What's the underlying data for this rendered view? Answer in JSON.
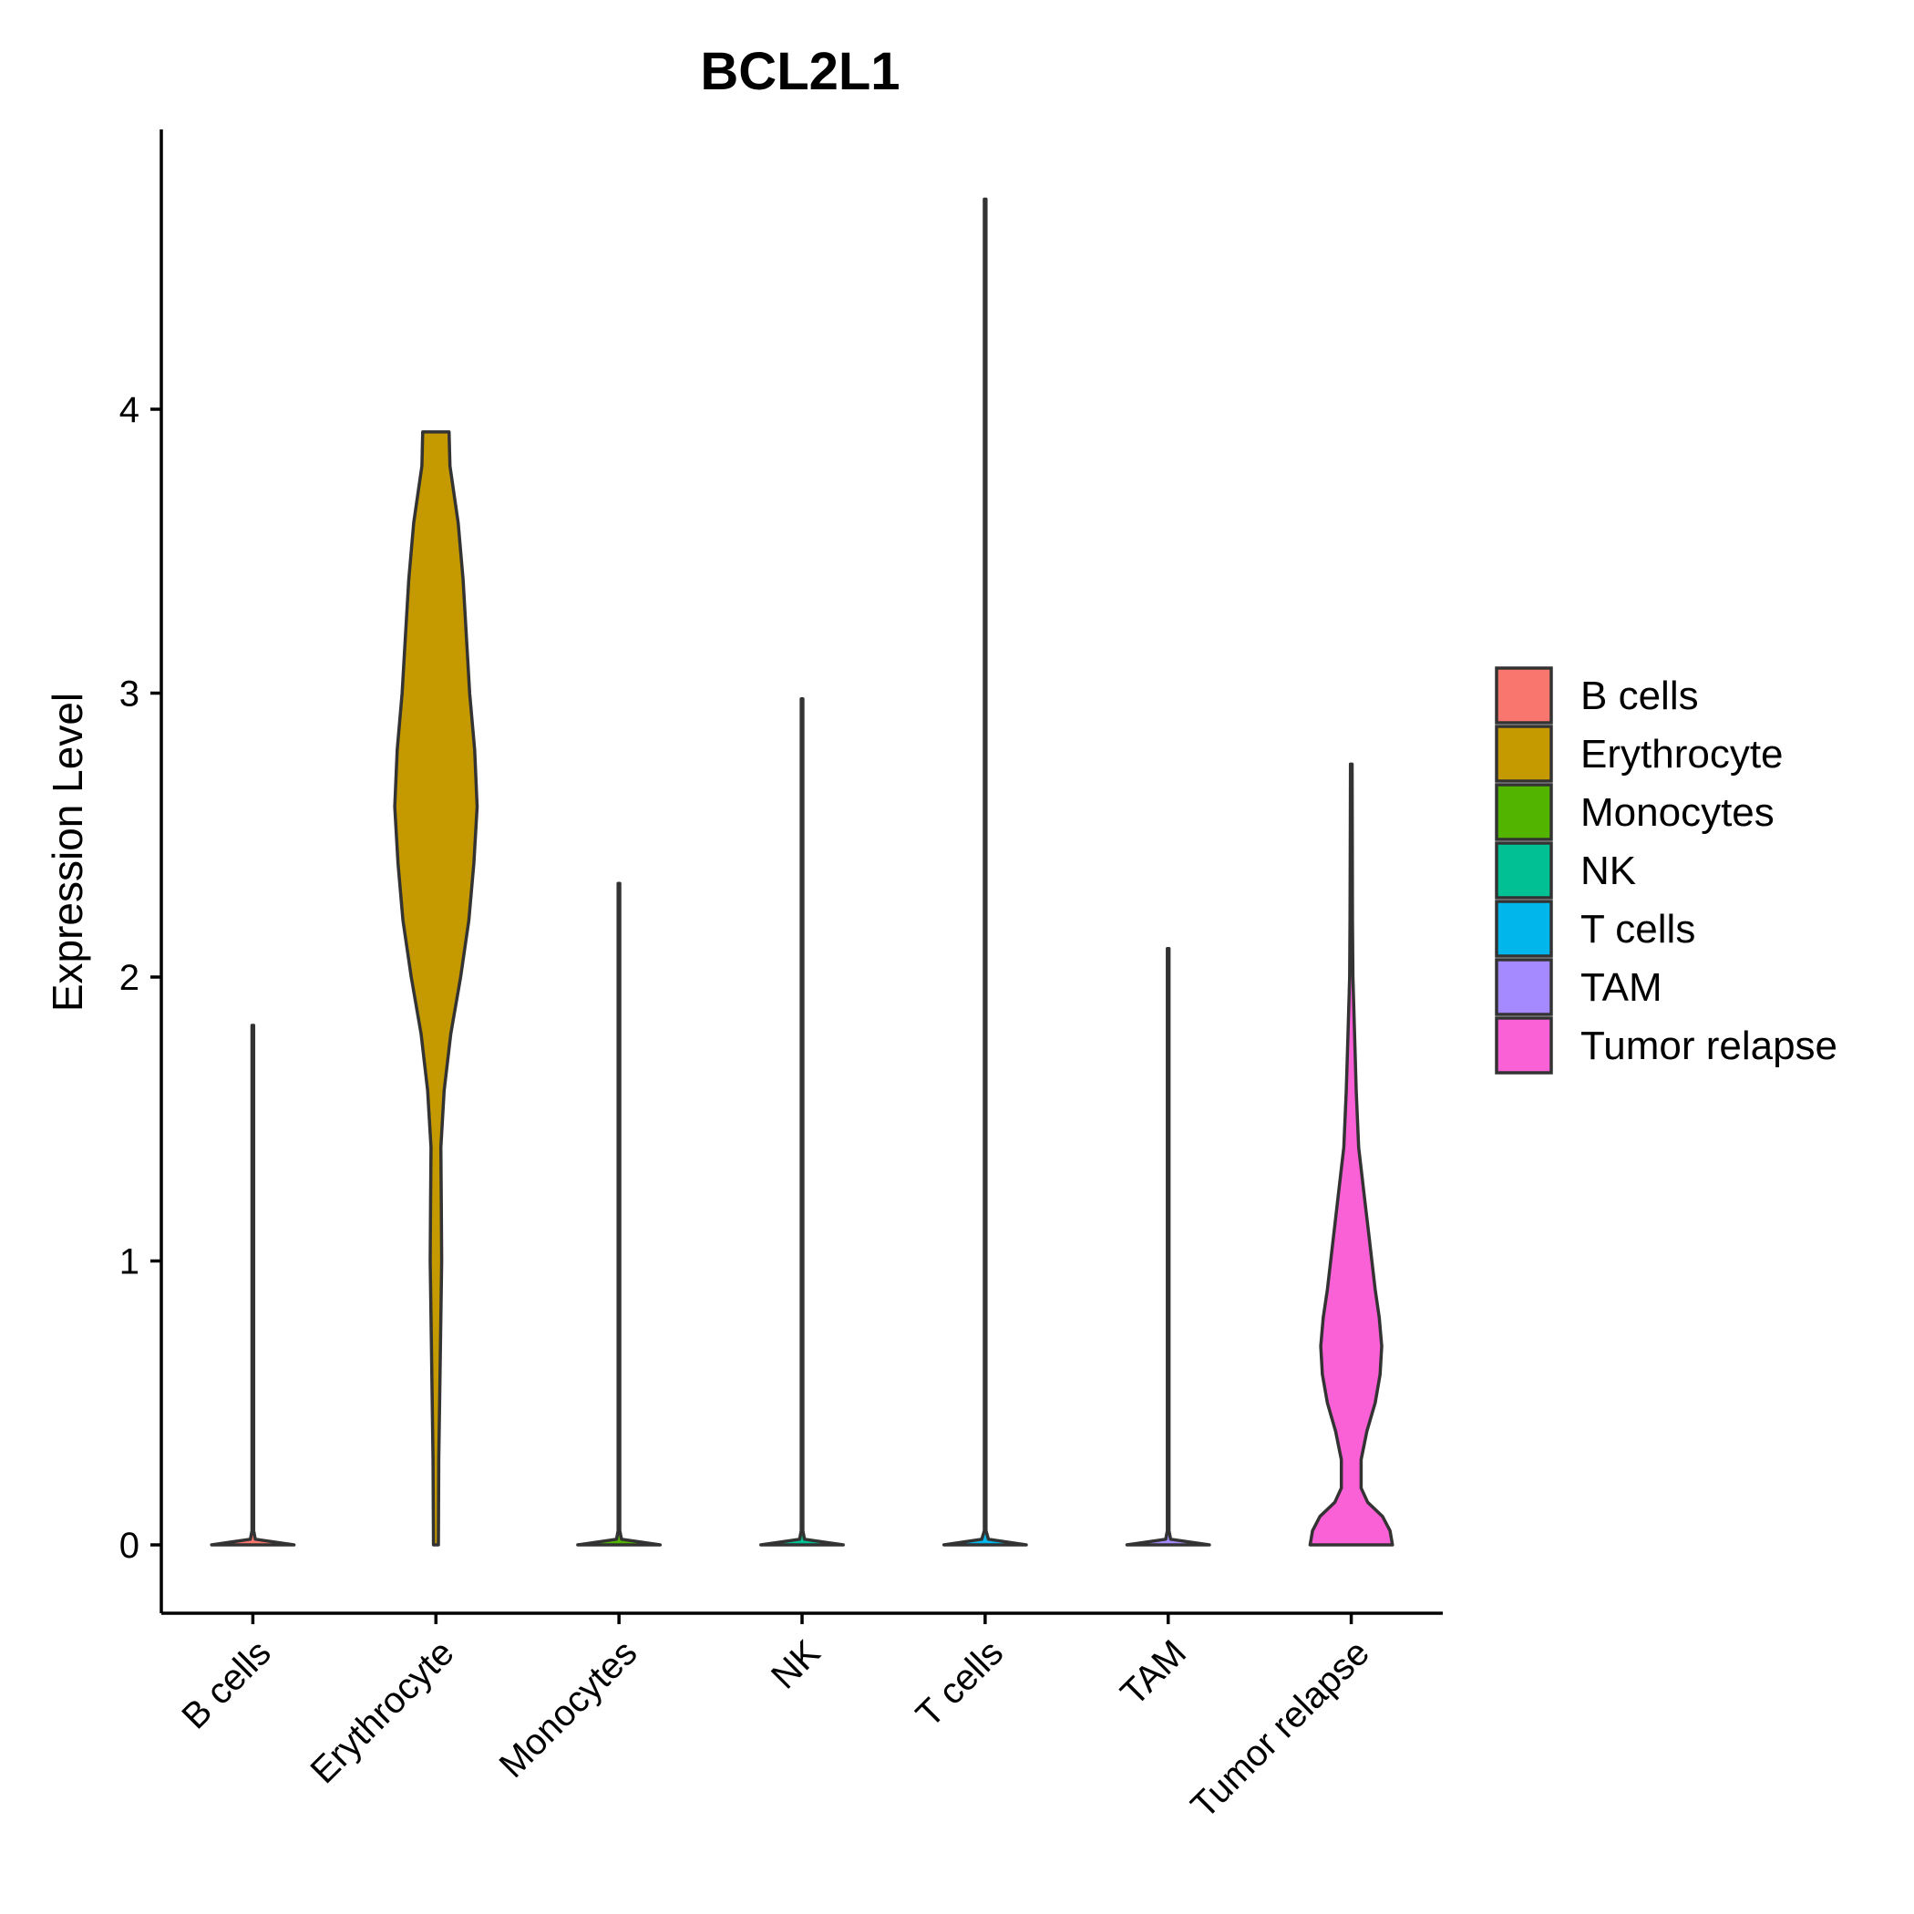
{
  "chart_data": {
    "type": "violin",
    "title": "BCL2L1",
    "xlabel": "",
    "ylabel": "Expression Level",
    "ylim": [
      -0.23,
      4.93
    ],
    "yticks": [
      0,
      1,
      2,
      3,
      4
    ],
    "grid": false,
    "legend_position": "right",
    "categories": [
      "B cells",
      "Erythrocyte",
      "Monocytes",
      "NK",
      "T cells",
      "TAM",
      "Tumor relapse"
    ],
    "series": [
      {
        "name": "B cells",
        "color": "#F8766D",
        "max": 1.83,
        "profile": [
          [
            0,
            0.5
          ],
          [
            0.02,
            0.03
          ],
          [
            0.05,
            0.01
          ],
          [
            1.83,
            0.01
          ]
        ]
      },
      {
        "name": "Erythrocyte",
        "color": "#C49A00",
        "max": 3.92,
        "profile": [
          [
            0,
            0.03
          ],
          [
            0.3,
            0.035
          ],
          [
            0.6,
            0.05
          ],
          [
            0.8,
            0.06
          ],
          [
            1.0,
            0.07
          ],
          [
            1.2,
            0.065
          ],
          [
            1.4,
            0.06
          ],
          [
            1.6,
            0.1
          ],
          [
            1.8,
            0.18
          ],
          [
            2.0,
            0.3
          ],
          [
            2.2,
            0.4
          ],
          [
            2.4,
            0.46
          ],
          [
            2.6,
            0.5
          ],
          [
            2.8,
            0.47
          ],
          [
            3.0,
            0.41
          ],
          [
            3.2,
            0.37
          ],
          [
            3.4,
            0.33
          ],
          [
            3.6,
            0.27
          ],
          [
            3.8,
            0.17
          ],
          [
            3.92,
            0.16
          ]
        ]
      },
      {
        "name": "Monocytes",
        "color": "#53B400",
        "max": 2.33,
        "profile": [
          [
            0,
            0.5
          ],
          [
            0.02,
            0.03
          ],
          [
            0.05,
            0.01
          ],
          [
            2.33,
            0.01
          ]
        ]
      },
      {
        "name": "NK",
        "color": "#00C094",
        "max": 2.98,
        "profile": [
          [
            0,
            0.5
          ],
          [
            0.02,
            0.03
          ],
          [
            0.05,
            0.01
          ],
          [
            2.98,
            0.01
          ]
        ]
      },
      {
        "name": "T cells",
        "color": "#00B6EB",
        "max": 4.74,
        "profile": [
          [
            0,
            0.5
          ],
          [
            0.02,
            0.04
          ],
          [
            0.05,
            0.01
          ],
          [
            4.74,
            0.01
          ]
        ]
      },
      {
        "name": "TAM",
        "color": "#A58AFF",
        "max": 2.1,
        "profile": [
          [
            0,
            0.5
          ],
          [
            0.02,
            0.03
          ],
          [
            0.05,
            0.01
          ],
          [
            2.1,
            0.01
          ]
        ]
      },
      {
        "name": "Tumor relapse",
        "color": "#FB61D7",
        "max": 2.75,
        "profile": [
          [
            0,
            0.5
          ],
          [
            0.05,
            0.47
          ],
          [
            0.1,
            0.38
          ],
          [
            0.15,
            0.2
          ],
          [
            0.2,
            0.12
          ],
          [
            0.3,
            0.12
          ],
          [
            0.4,
            0.19
          ],
          [
            0.5,
            0.29
          ],
          [
            0.6,
            0.35
          ],
          [
            0.7,
            0.37
          ],
          [
            0.8,
            0.34
          ],
          [
            0.9,
            0.29
          ],
          [
            1.0,
            0.25
          ],
          [
            1.1,
            0.21
          ],
          [
            1.2,
            0.17
          ],
          [
            1.3,
            0.13
          ],
          [
            1.4,
            0.09
          ],
          [
            1.6,
            0.06
          ],
          [
            1.8,
            0.04
          ],
          [
            2.0,
            0.02
          ],
          [
            2.2,
            0.015
          ],
          [
            2.5,
            0.012
          ],
          [
            2.75,
            0.01
          ]
        ]
      }
    ]
  }
}
